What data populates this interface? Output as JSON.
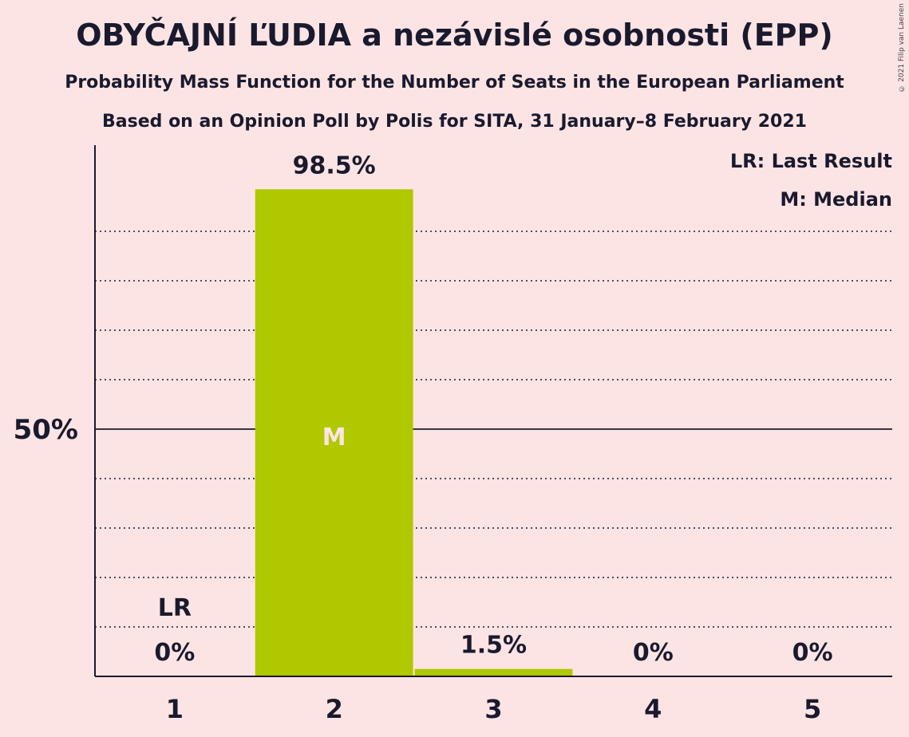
{
  "chart_data": {
    "type": "bar",
    "title": "OBYČAJNÍ ĽUDIA a nezávislé osobnosti (EPP)",
    "subtitle": "Probability Mass Function for the Number of Seats in the European Parliament",
    "subtitle2": "Based on an Opinion Poll by Polis for SITA, 31 January–8 February 2021",
    "categories": [
      "1",
      "2",
      "3",
      "4",
      "5"
    ],
    "values": [
      0,
      98.5,
      1.5,
      0,
      0
    ],
    "value_labels": [
      "0%",
      "98.5%",
      "1.5%",
      "0%",
      "0%"
    ],
    "ylim": [
      0,
      107
    ],
    "ytick_label": "50%",
    "ytick_value": 50,
    "gridlines": [
      10,
      20,
      30,
      40,
      60,
      70,
      80,
      90
    ],
    "bar_color": "#afc800",
    "median_category": "2",
    "median_marker": "M",
    "last_result_category": "1",
    "last_result_marker": "LR",
    "legend": [
      "LR: Last Result",
      "M: Median"
    ],
    "legend_position": "top-right"
  },
  "copyright": "© 2021 Filip van Laenen"
}
